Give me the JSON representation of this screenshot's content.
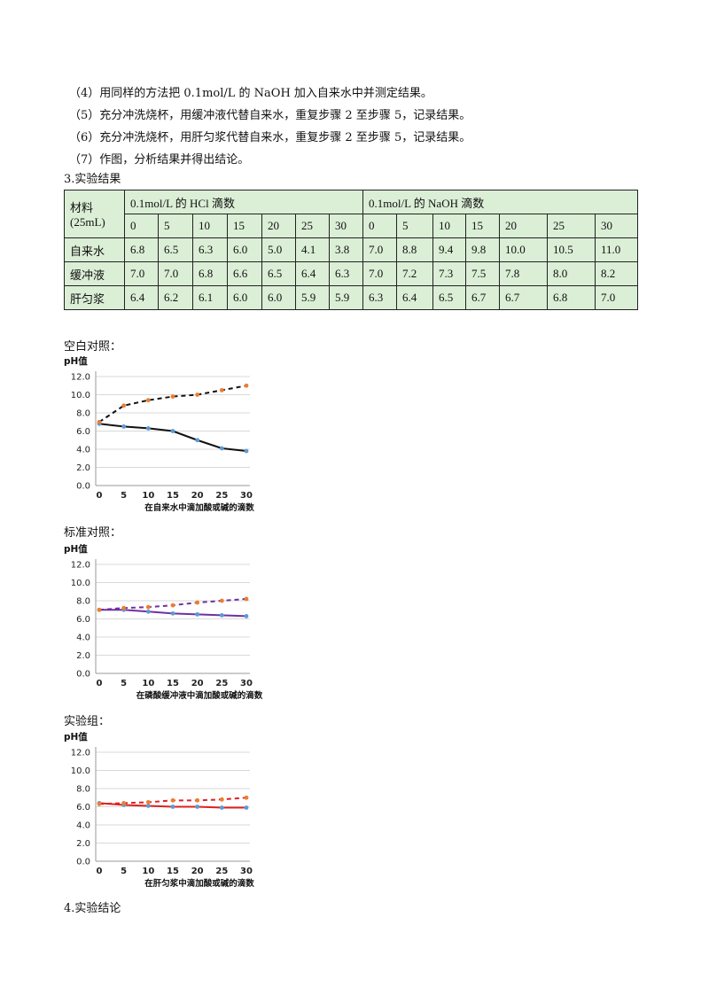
{
  "steps": [
    "（4）用同样的方法把 0.1mol/L 的 NaOH 加入自来水中并测定结果。",
    "（5）充分冲洗烧杯，用缓冲液代替自来水，重复步骤 2 至步骤 5，记录结果。",
    "（6）充分冲洗烧杯，用肝匀浆代替自来水，重复步骤 2 至步骤 5，记录结果。",
    "（7）作图，分析结果并得出结论。"
  ],
  "section3": "3.实验结果",
  "table": {
    "material_header_line1": "材料",
    "material_header_line2": "(25mL)",
    "hcl_header": "0.1mol/L 的 HCl 滴数",
    "naoh_header": "0.1mol/L 的 NaOH 滴数",
    "hcl_drops": [
      "0",
      "5",
      "10",
      "15",
      "20",
      "25",
      "30"
    ],
    "naoh_drops": [
      "0",
      "5",
      "10",
      "15",
      "20",
      "25",
      "30"
    ],
    "rows": [
      {
        "name": "自来水",
        "hcl": [
          "6.8",
          "6.5",
          "6.3",
          "6.0",
          "5.0",
          "4.1",
          "3.8"
        ],
        "naoh": [
          "7.0",
          "8.8",
          "9.4",
          "9.8",
          "10.0",
          "10.5",
          "11.0"
        ]
      },
      {
        "name": "缓冲液",
        "hcl": [
          "7.0",
          "7.0",
          "6.8",
          "6.6",
          "6.5",
          "6.4",
          "6.3"
        ],
        "naoh": [
          "7.0",
          "7.2",
          "7.3",
          "7.5",
          "7.8",
          "8.0",
          "8.2"
        ]
      },
      {
        "name": "肝匀浆",
        "hcl": [
          "6.4",
          "6.2",
          "6.1",
          "6.0",
          "6.0",
          "5.9",
          "5.9"
        ],
        "naoh": [
          "6.3",
          "6.4",
          "6.5",
          "6.7",
          "6.7",
          "6.8",
          "7.0"
        ]
      }
    ]
  },
  "chart_labels": [
    "空白对照：",
    "标准对照：",
    "实验组："
  ],
  "section4": "4.实验结论",
  "chart_data": [
    {
      "type": "line",
      "ylabel": "pH值",
      "xlabel": "在自来水中滴加酸或碱的滴数",
      "x": [
        0,
        5,
        10,
        15,
        20,
        25,
        30
      ],
      "xticks": [
        "0",
        "5",
        "10",
        "15",
        "20",
        "25",
        "30"
      ],
      "yticks": [
        "0.0",
        "2.0",
        "4.0",
        "6.0",
        "8.0",
        "10.0",
        "12.0"
      ],
      "ylim": [
        0,
        12
      ],
      "grid": true,
      "series": [
        {
          "values": [
            6.8,
            6.5,
            6.3,
            6.0,
            5.0,
            4.1,
            3.8
          ],
          "color": "#111111",
          "dashed": false,
          "marker_color": "#5b9bd5"
        },
        {
          "values": [
            7.0,
            8.8,
            9.4,
            9.8,
            10.0,
            10.5,
            11.0
          ],
          "color": "#111111",
          "dashed": true,
          "marker_color": "#ed7d31"
        }
      ]
    },
    {
      "type": "line",
      "ylabel": "pH值",
      "xlabel": "在磷酸缓冲液中滴加酸或碱的滴数",
      "x": [
        0,
        5,
        10,
        15,
        20,
        25,
        30
      ],
      "xticks": [
        "0",
        "5",
        "10",
        "15",
        "20",
        "25",
        "30"
      ],
      "yticks": [
        "0.0",
        "2.0",
        "4.0",
        "6.0",
        "8.0",
        "10.0",
        "12.0"
      ],
      "ylim": [
        0,
        12
      ],
      "grid": true,
      "series": [
        {
          "values": [
            7.0,
            7.0,
            6.8,
            6.6,
            6.5,
            6.4,
            6.3
          ],
          "color": "#7030a0",
          "dashed": false,
          "marker_color": "#5b9bd5"
        },
        {
          "values": [
            7.0,
            7.2,
            7.3,
            7.5,
            7.8,
            8.0,
            8.2
          ],
          "color": "#7030a0",
          "dashed": true,
          "marker_color": "#ed7d31"
        }
      ]
    },
    {
      "type": "line",
      "ylabel": "pH值",
      "xlabel": "在肝匀浆中滴加酸或碱的滴数",
      "x": [
        0,
        5,
        10,
        15,
        20,
        25,
        30
      ],
      "xticks": [
        "0",
        "5",
        "10",
        "15",
        "20",
        "25",
        "30"
      ],
      "yticks": [
        "0.0",
        "2.0",
        "4.0",
        "6.0",
        "8.0",
        "10.0",
        "12.0"
      ],
      "ylim": [
        0,
        12
      ],
      "grid": true,
      "series": [
        {
          "values": [
            6.4,
            6.2,
            6.1,
            6.0,
            6.0,
            5.9,
            5.9
          ],
          "color": "#e02020",
          "dashed": false,
          "marker_color": "#5b9bd5"
        },
        {
          "values": [
            6.3,
            6.4,
            6.5,
            6.7,
            6.7,
            6.8,
            7.0
          ],
          "color": "#e02020",
          "dashed": true,
          "marker_color": "#ed7d31"
        }
      ]
    }
  ]
}
